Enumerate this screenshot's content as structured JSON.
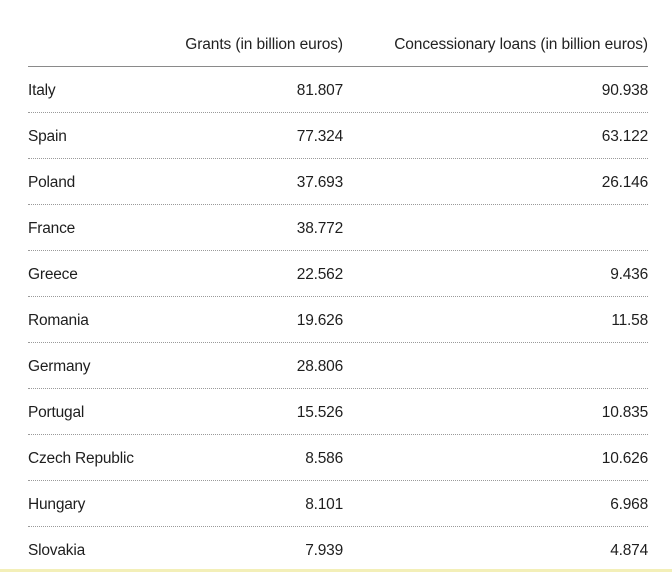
{
  "chart_data": {
    "type": "table",
    "columns": [
      "",
      "Grants (in billion euros)",
      "Concessionary loans (in billion euros)"
    ],
    "rows": [
      {
        "country": "Italy",
        "grants": "81.807",
        "loans": "90.938"
      },
      {
        "country": "Spain",
        "grants": "77.324",
        "loans": "63.122"
      },
      {
        "country": "Poland",
        "grants": "37.693",
        "loans": "26.146"
      },
      {
        "country": "France",
        "grants": "38.772",
        "loans": ""
      },
      {
        "country": "Greece",
        "grants": "22.562",
        "loans": "9.436"
      },
      {
        "country": "Romania",
        "grants": "19.626",
        "loans": "11.58"
      },
      {
        "country": "Germany",
        "grants": "28.806",
        "loans": ""
      },
      {
        "country": "Portugal",
        "grants": "15.526",
        "loans": "10.835"
      },
      {
        "country": "Czech Republic",
        "grants": "8.586",
        "loans": "10.626"
      },
      {
        "country": "Hungary",
        "grants": "8.101",
        "loans": "6.968"
      },
      {
        "country": "Slovakia",
        "grants": "7.939",
        "loans": "4.874"
      }
    ]
  },
  "colors": {
    "text": "#1e1e1e",
    "header_rule": "#8a8a8a",
    "row_rule": "#9a9a9a",
    "bottom_accent": "#f3efb8"
  }
}
